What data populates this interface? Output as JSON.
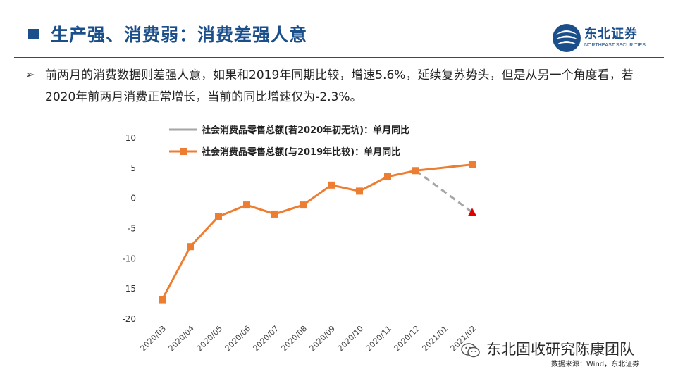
{
  "header": {
    "title": "生产强、消费弱：消费差强人意",
    "logo_name": "东北证券",
    "logo_sub": "NORTHEAST SECURITIES"
  },
  "bullet": {
    "symbol": "➢",
    "text": "前两月的消费数据则差强人意，如果和2019年同期比较，增速5.6%，延续复苏势头，但是从另一个角度看，若2020年前两月消费正常增长，当前的同比增速仅为-2.3%。"
  },
  "chart_data": {
    "type": "line",
    "categories": [
      "2020/03",
      "2020/04",
      "2020/05",
      "2020/06",
      "2020/07",
      "2020/08",
      "2020/09",
      "2020/10",
      "2020/11",
      "2020/12",
      "2021/01",
      "2021/02"
    ],
    "series": [
      {
        "name": "社会消费品零售总额(若2020年初无坑)：单月同比",
        "style": "dashed",
        "color": "#a6a6a6",
        "x": [
          "2020/12",
          "2021/02"
        ],
        "values": [
          4.6,
          -2.3
        ]
      },
      {
        "name": "社会消费品零售总额(与2019年比较)：单月同比",
        "style": "solid",
        "color": "#ed7d31",
        "x": [
          "2020/03",
          "2020/04",
          "2020/05",
          "2020/06",
          "2020/07",
          "2020/08",
          "2020/09",
          "2020/10",
          "2020/11",
          "2020/12",
          "2021/02"
        ],
        "values": [
          -16.8,
          -8.0,
          -3.0,
          -1.1,
          -2.6,
          -1.1,
          2.2,
          1.2,
          3.6,
          4.6,
          5.6
        ]
      }
    ],
    "highlight_point": {
      "x": "2021/02",
      "value": -2.3,
      "marker": "triangle",
      "color": "#e00000"
    },
    "ylim": [
      -20,
      10
    ],
    "yticks": [
      10,
      5,
      0,
      -5,
      -10,
      -15,
      -20
    ],
    "legend_position": "top",
    "grid": false
  },
  "footer": {
    "source": "数据来源：Wind，东北证券",
    "watermark": "东北固收研究陈康团队"
  }
}
